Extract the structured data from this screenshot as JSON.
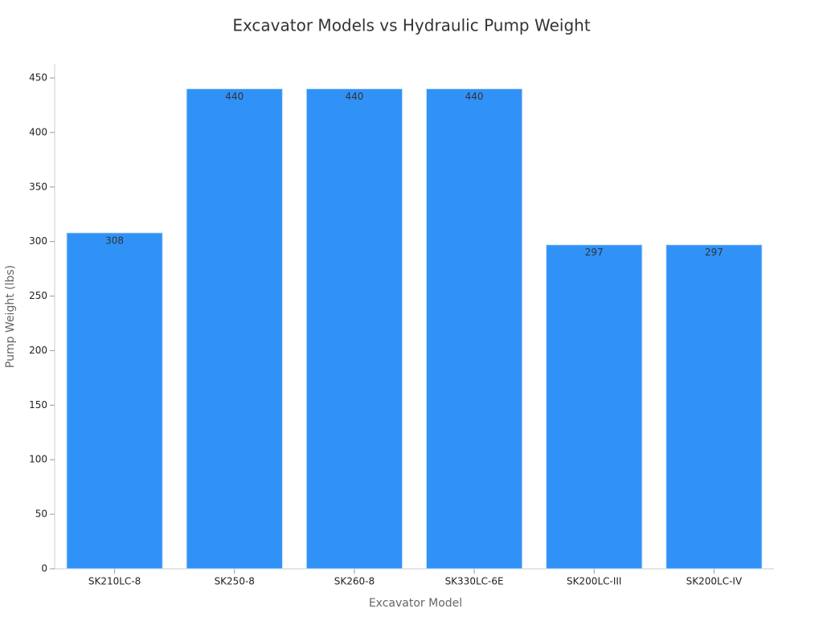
{
  "chart_data": {
    "type": "bar",
    "title": "Excavator Models vs Hydraulic Pump Weight",
    "x_label": "Excavator Model",
    "y_label": "Pump Weight (lbs)",
    "categories": [
      "SK210LC-8",
      "SK250-8",
      "SK260-8",
      "SK330LC-6E",
      "SK200LC-III",
      "SK200LC-IV"
    ],
    "values": [
      308,
      440,
      440,
      440,
      297,
      297
    ],
    "color": "#3092f7",
    "ylim": [
      0,
      462.5
    ],
    "yticks": [
      0,
      50,
      100,
      150,
      200,
      250,
      300,
      350,
      400,
      450
    ],
    "grid": false
  }
}
